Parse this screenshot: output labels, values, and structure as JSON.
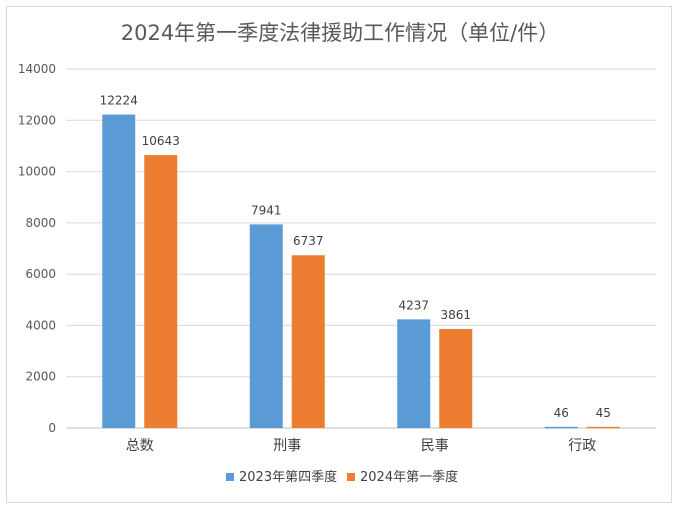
{
  "chart_data": {
    "type": "bar",
    "title": "2024年第一季度法律援助工作情况（单位/件）",
    "categories": [
      "总数",
      "刑事",
      "民事",
      "行政"
    ],
    "series": [
      {
        "name": "2023年第四季度",
        "values": [
          12224,
          7941,
          4237,
          46
        ],
        "color": "#5b9bd5"
      },
      {
        "name": "2024年第一季度",
        "values": [
          10643,
          6737,
          3861,
          45
        ],
        "color": "#ed7d31"
      }
    ],
    "ylim": [
      0,
      14000
    ],
    "yticks": [
      0,
      2000,
      4000,
      6000,
      8000,
      10000,
      12000,
      14000
    ],
    "grid": true,
    "legend_position": "bottom"
  }
}
